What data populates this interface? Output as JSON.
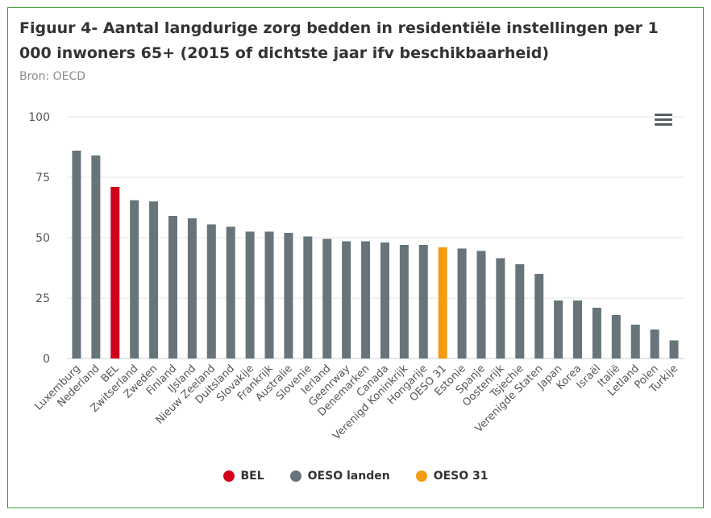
{
  "header": {
    "title": "Figuur 4- Aantal langdurige zorg bedden in residentiële instellingen per 1 000 inwoners 65+ (2015 of dichtste jaar ifv beschikbaarheid)",
    "source": "Bron: OECD"
  },
  "menu_icon": "hamburger-menu-icon",
  "colors": {
    "BEL": "#d0021b",
    "OESO landen": "#67747a",
    "OESO 31": "#f39c12",
    "grid": "#e6e6e6",
    "frame": "#3a9a3a"
  },
  "legend": {
    "items": [
      {
        "label": "BEL",
        "color": "#d0021b"
      },
      {
        "label": "OESO landen",
        "color": "#67747a"
      },
      {
        "label": "OESO 31",
        "color": "#f39c12"
      }
    ]
  },
  "chart_data": {
    "type": "bar",
    "title": "Figuur 4- Aantal langdurige zorg bedden in residentiële instellingen per 1 000 inwoners 65+ (2015 of dichtste jaar ifv beschikbaarheid)",
    "xlabel": "",
    "ylabel": "",
    "ylim": [
      0,
      100
    ],
    "yticks": [
      0,
      25,
      50,
      75,
      100
    ],
    "grid": true,
    "legend_position": "bottom",
    "categories": [
      "Luxemburg",
      "Nederland",
      "BEL",
      "Zwitserland",
      "Zweden",
      "Finland",
      "IJsland",
      "Nieuw Zeeland",
      "Duitsland",
      "Slovakije",
      "Frankrijk",
      "Australie",
      "Slovenie",
      "Ierland",
      "Geenrway",
      "Denemarken",
      "Canada",
      "Verenigd Koninkrijk",
      "Hongarije",
      "OESO 31",
      "Estonie",
      "Spanje",
      "Oostenrijk",
      "Tsjechie",
      "Verenigde Staten",
      "Japan",
      "Korea",
      "Israël",
      "Italië",
      "Letland",
      "Polen",
      "Turkije"
    ],
    "values": [
      86,
      84,
      71,
      65.5,
      65,
      59,
      58,
      55.5,
      54.5,
      52.5,
      52.5,
      52,
      50.5,
      49.5,
      48.5,
      48.5,
      48,
      47,
      47,
      46,
      45.5,
      44.5,
      41.5,
      39,
      35,
      24,
      24,
      21,
      18,
      14,
      12,
      7.5
    ],
    "groups": [
      "OESO landen",
      "OESO landen",
      "BEL",
      "OESO landen",
      "OESO landen",
      "OESO landen",
      "OESO landen",
      "OESO landen",
      "OESO landen",
      "OESO landen",
      "OESO landen",
      "OESO landen",
      "OESO landen",
      "OESO landen",
      "OESO landen",
      "OESO landen",
      "OESO landen",
      "OESO landen",
      "OESO landen",
      "OESO 31",
      "OESO landen",
      "OESO landen",
      "OESO landen",
      "OESO landen",
      "OESO landen",
      "OESO landen",
      "OESO landen",
      "OESO landen",
      "OESO landen",
      "OESO landen",
      "OESO landen",
      "OESO landen"
    ]
  }
}
